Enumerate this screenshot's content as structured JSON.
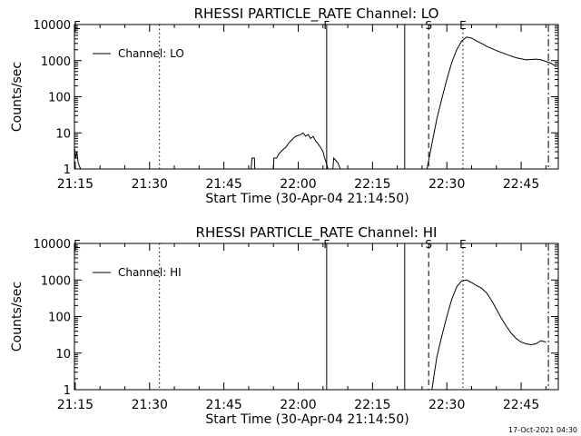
{
  "colors": {
    "background": "#ffffff",
    "ink": "#000000"
  },
  "footer": {
    "timestamp": "17-Oct-2021 04:30"
  },
  "chart_data": [
    {
      "type": "line",
      "title": "RHESSI PARTICLE_RATE Channel: LO",
      "xlabel": "Start Time (30-Apr-04 21:14:50)",
      "ylabel": "Counts/sec",
      "y_scale": "log",
      "ylim": [
        1,
        10000
      ],
      "y_ticks": [
        1,
        10,
        100,
        1000,
        10000
      ],
      "y_tick_labels": [
        "1",
        "10",
        "100",
        "1000",
        "10000"
      ],
      "xlim": [
        "21:14:50",
        "22:52:30"
      ],
      "x_ticks": [
        "21:15",
        "21:30",
        "21:45",
        "22:00",
        "22:15",
        "22:30",
        "22:45"
      ],
      "grid": false,
      "legend": {
        "position": "top-left",
        "entries": [
          "Channel: LO"
        ]
      },
      "series": [
        {
          "name": "Channel: LO",
          "segments": [
            {
              "x": [
                "21:14:50",
                "21:15:05",
                "21:15:20",
                "21:15:35",
                "21:15:50",
                "21:16:05"
              ],
              "y": [
                4,
                2,
                3,
                1.5,
                1.2,
                1
              ]
            },
            {
              "x": [
                "21:50:30",
                "21:50:40",
                "21:51:10",
                "21:51:15",
                "21:55:00",
                "21:55:05",
                "21:55:40",
                "21:56:00",
                "21:56:30",
                "21:57:00",
                "21:57:30",
                "21:58:00",
                "21:58:30",
                "21:59:00",
                "21:59:30",
                "22:00:00",
                "22:00:30",
                "22:01:00",
                "22:01:30",
                "22:02:00",
                "22:02:30",
                "22:03:00",
                "22:03:30",
                "22:04:00",
                "22:04:30",
                "22:05:00",
                "22:05:20",
                "22:05:40",
                "22:06:00"
              ],
              "y": [
                1,
                2,
                2,
                1,
                1,
                2,
                2,
                2.5,
                3,
                3.5,
                4,
                5,
                6,
                7,
                8,
                8.5,
                9,
                10,
                8,
                9,
                7,
                8,
                6,
                5,
                4,
                3,
                2,
                1.5,
                1
              ]
            },
            {
              "x": [
                "22:07:00",
                "22:07:10",
                "22:08:00",
                "22:08:30"
              ],
              "y": [
                1,
                2,
                1.5,
                1
              ]
            },
            {
              "x": [
                "22:26:00",
                "22:27:00",
                "22:28:00",
                "22:29:00",
                "22:30:00",
                "22:31:00",
                "22:32:00",
                "22:33:00",
                "22:34:00",
                "22:35:00",
                "22:36:00",
                "22:37:00",
                "22:38:00",
                "22:40:00",
                "22:42:00",
                "22:44:00",
                "22:46:00",
                "22:48:00",
                "22:49:00",
                "22:50:00",
                "22:51:00",
                "22:52:00"
              ],
              "y": [
                1,
                5,
                25,
                90,
                300,
                900,
                2000,
                3500,
                4500,
                4200,
                3500,
                3000,
                2500,
                1900,
                1500,
                1200,
                1050,
                1100,
                1050,
                950,
                850,
                700
              ]
            }
          ]
        }
      ],
      "annotations": [
        {
          "label": "F",
          "time": "22:05:45",
          "style": "solid"
        },
        {
          "label": "S",
          "time": "22:26:20",
          "style": "dashed"
        },
        {
          "label": "E",
          "time": "22:33:15",
          "style": "dotted"
        },
        {
          "label": "",
          "time": "21:32:00",
          "style": "dotted"
        },
        {
          "label": "",
          "time": "22:21:30",
          "style": "solid"
        },
        {
          "label": "",
          "time": "22:50:30",
          "style": "dashdot"
        }
      ]
    },
    {
      "type": "line",
      "title": "RHESSI PARTICLE_RATE Channel: HI",
      "xlabel": "Start Time (30-Apr-04 21:14:50)",
      "ylabel": "Counts/sec",
      "y_scale": "log",
      "ylim": [
        1,
        10000
      ],
      "y_ticks": [
        1,
        10,
        100,
        1000,
        10000
      ],
      "y_tick_labels": [
        "1",
        "10",
        "100",
        "1000",
        "10000"
      ],
      "xlim": [
        "21:14:50",
        "22:52:30"
      ],
      "x_ticks": [
        "21:15",
        "21:30",
        "21:45",
        "22:00",
        "22:15",
        "22:30",
        "22:45"
      ],
      "grid": false,
      "legend": {
        "position": "top-left",
        "entries": [
          "Channel: HI"
        ]
      },
      "series": [
        {
          "name": "Channel: HI",
          "segments": [
            {
              "x": [
                "22:27:00",
                "22:27:30",
                "22:28:00",
                "22:29:00",
                "22:30:00",
                "22:31:00",
                "22:32:00",
                "22:33:00",
                "22:34:00",
                "22:35:00",
                "22:36:00",
                "22:37:00",
                "22:38:00",
                "22:39:00",
                "22:40:00",
                "22:41:00",
                "22:42:00",
                "22:43:00",
                "22:44:00",
                "22:45:00",
                "22:46:00",
                "22:47:00",
                "22:48:00",
                "22:49:00",
                "22:50:00"
              ],
              "y": [
                1,
                3,
                8,
                30,
                100,
                300,
                650,
                950,
                1000,
                850,
                700,
                600,
                450,
                280,
                160,
                90,
                55,
                35,
                25,
                20,
                18,
                17,
                18,
                22,
                20
              ]
            }
          ]
        }
      ],
      "annotations": [
        {
          "label": "F",
          "time": "22:05:45",
          "style": "solid"
        },
        {
          "label": "S",
          "time": "22:26:20",
          "style": "dashed"
        },
        {
          "label": "E",
          "time": "22:33:15",
          "style": "dotted"
        },
        {
          "label": "",
          "time": "21:32:00",
          "style": "dotted"
        },
        {
          "label": "",
          "time": "22:21:30",
          "style": "solid"
        },
        {
          "label": "",
          "time": "22:50:30",
          "style": "dashdot"
        }
      ]
    }
  ]
}
